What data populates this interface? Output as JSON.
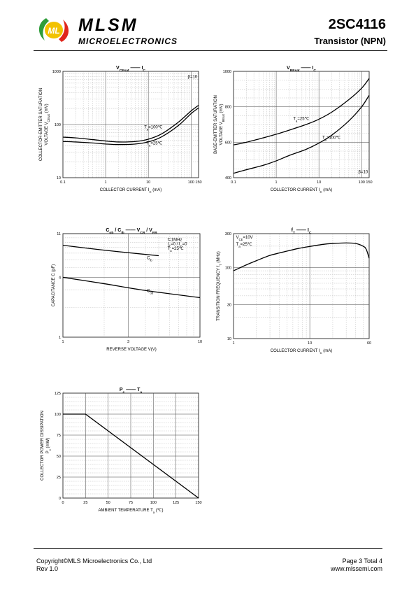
{
  "header": {
    "brand": "MLSM",
    "brand_sub": "MICROELECTRONICS",
    "part_number": "2SC4116",
    "part_type": "Transistor  (NPN)",
    "logo_text": "ML",
    "logo_colors": [
      "#2e9d3a",
      "#e0261c",
      "#f2c200"
    ]
  },
  "footer": {
    "copyright": "Copyright©MLS Microelectronics Co., Ltd",
    "rev": "Rev 1.0",
    "page": "Page 3 Total 4",
    "website": "www.mlssemi.com"
  },
  "chart_data": [
    {
      "type": "line",
      "title": [
        "V",
        "CEsat",
        "—",
        "I",
        "C"
      ],
      "ylabel": [
        "COLLECTOR-EMITTER SATURATION",
        "VOLTAGE   V",
        "CEsat",
        "(mV)"
      ],
      "xlabel": [
        "COLLECTOR CURRENT   I",
        "C",
        "(mA)"
      ],
      "xscale": "log",
      "yscale": "log",
      "xlim": [
        0.1,
        150
      ],
      "ylim": [
        10,
        1000
      ],
      "x_ticks": [
        [
          "0.1",
          0.1
        ],
        [
          "1",
          1
        ],
        [
          "10",
          10
        ],
        [
          "100",
          100
        ],
        [
          "150",
          150
        ]
      ],
      "y_ticks": [
        [
          "10",
          10
        ],
        [
          "100",
          100
        ],
        [
          "1000",
          1000
        ]
      ],
      "annotations": [
        {
          "text": "β=10",
          "x": 140,
          "y": 750,
          "anchor": "end"
        },
        {
          "text": "T",
          "sub": "a",
          "rest": "=100℃",
          "x": 8,
          "y": 85,
          "anchor": "start"
        },
        {
          "text": "T",
          "sub": "a",
          "rest": "=25℃",
          "x": 9,
          "y": 42,
          "anchor": "start"
        }
      ],
      "series": [
        {
          "x": [
            0.1,
            0.2,
            0.5,
            1,
            2,
            5,
            10,
            20,
            50,
            100,
            150
          ],
          "y": [
            58,
            56,
            52,
            49,
            47,
            48,
            53,
            66,
            110,
            180,
            230
          ]
        },
        {
          "x": [
            0.1,
            0.2,
            0.5,
            1,
            2,
            5,
            10,
            20,
            50,
            100,
            150
          ],
          "y": [
            48,
            47,
            45,
            43,
            42,
            43,
            47,
            58,
            95,
            160,
            205
          ]
        }
      ]
    },
    {
      "type": "line",
      "title": [
        "V",
        "BEsat",
        "—",
        "I",
        "C"
      ],
      "ylabel": [
        "BASE-EMITTER SATURATION",
        "VOLTAGE   V",
        "BEsat",
        "(mV)"
      ],
      "xlabel": [
        "COLLECTOR CURRENT   I",
        "C",
        "(mA)"
      ],
      "xscale": "log",
      "yscale": "linear",
      "xlim": [
        0.1,
        150
      ],
      "ylim": [
        400,
        1000
      ],
      "x_ticks": [
        [
          "0.1",
          0.1
        ],
        [
          "1",
          1
        ],
        [
          "10",
          10
        ],
        [
          "100",
          100
        ],
        [
          "150",
          150
        ]
      ],
      "y_ticks": [
        [
          "400",
          400
        ],
        [
          "600",
          600
        ],
        [
          "800",
          800
        ],
        [
          "1000",
          1000
        ]
      ],
      "annotations": [
        {
          "text": "T",
          "sub": "a",
          "rest": "=25℃",
          "x": 2.5,
          "y": 725,
          "anchor": "start"
        },
        {
          "text": "T",
          "sub": "a",
          "rest": "=100℃",
          "x": 12,
          "y": 620,
          "anchor": "start"
        },
        {
          "text": "β=10",
          "x": 140,
          "y": 425,
          "anchor": "end"
        }
      ],
      "series": [
        {
          "x": [
            0.1,
            0.2,
            0.5,
            1,
            2,
            5,
            10,
            20,
            50,
            100,
            150
          ],
          "y": [
            585,
            600,
            625,
            645,
            668,
            700,
            730,
            770,
            840,
            905,
            960
          ]
        },
        {
          "x": [
            0.1,
            0.2,
            0.5,
            1,
            2,
            5,
            10,
            20,
            50,
            100,
            150
          ],
          "y": [
            425,
            445,
            470,
            495,
            525,
            560,
            595,
            640,
            720,
            800,
            865
          ]
        }
      ]
    },
    {
      "type": "line",
      "title": [
        "C",
        "ob",
        " / ",
        "C",
        "ib",
        "—",
        "V",
        "CB",
        " / ",
        "V",
        "EB"
      ],
      "ylabel": [
        "CAPACITANCE   C",
        "(pF)"
      ],
      "xlabel": [
        "REVERSE  VOLTAGE   V",
        "(V)"
      ],
      "xscale": "log",
      "yscale": "log",
      "xlim": [
        1,
        10
      ],
      "ylim": [
        1,
        11
      ],
      "x_ticks": [
        [
          "1",
          1
        ],
        [
          "3",
          3
        ],
        [
          "10",
          10
        ]
      ],
      "y_ticks": [
        [
          "1",
          1
        ],
        [
          "4",
          4
        ],
        [
          "11",
          11
        ]
      ],
      "annotations": [
        {
          "text": "f=1MHz",
          "x": 5.8,
          "y": 9.3,
          "anchor": "start"
        },
        {
          "text": "I",
          "sub": "E",
          "rest": "=0 / I",
          "sub2": "C",
          "rest2": "=0",
          "x": 5.8,
          "y": 8.4,
          "anchor": "start"
        },
        {
          "text": "T",
          "sub": "a",
          "rest": "=25℃",
          "x": 5.8,
          "y": 7.6,
          "anchor": "start"
        },
        {
          "text": "C",
          "sub": "ib",
          "x": 4.1,
          "y": 6.1,
          "anchor": "start"
        },
        {
          "text": "C",
          "sub": "ob",
          "x": 4.1,
          "y": 2.85,
          "anchor": "start"
        }
      ],
      "series": [
        {
          "x": [
            1,
            2,
            4,
            5
          ],
          "y": [
            8.4,
            7.5,
            6.8,
            6.6
          ]
        },
        {
          "x": [
            1,
            2,
            4,
            10
          ],
          "y": [
            4.0,
            3.45,
            2.95,
            2.5
          ]
        }
      ]
    },
    {
      "type": "line",
      "title": [
        "f",
        "T",
        "—",
        "I",
        "C"
      ],
      "ylabel": [
        "TRANSITION FREQUENCY   f",
        "T",
        "(MHz)"
      ],
      "xlabel": [
        "COLLECTOR CURRENT   I",
        "C",
        "(mA)"
      ],
      "xscale": "log",
      "yscale": "log",
      "xlim": [
        1,
        60
      ],
      "ylim": [
        10,
        300
      ],
      "x_ticks": [
        [
          "1",
          1
        ],
        [
          "10",
          10
        ],
        [
          "60",
          60
        ]
      ],
      "y_ticks": [
        [
          "10",
          10
        ],
        [
          "30",
          30
        ],
        [
          "100",
          100
        ],
        [
          "300",
          300
        ]
      ],
      "annotations": [
        {
          "text": "V",
          "sub": "CE",
          "rest": "=10V",
          "x": 1.08,
          "y": 255,
          "anchor": "start"
        },
        {
          "text": "T",
          "sub": "a",
          "rest": "=25℃",
          "x": 1.08,
          "y": 205,
          "anchor": "start"
        }
      ],
      "series": [
        {
          "x": [
            1,
            1.5,
            2,
            3,
            5,
            7,
            10,
            15,
            20,
            30,
            40,
            50,
            55,
            60
          ],
          "y": [
            90,
            110,
            125,
            148,
            170,
            185,
            198,
            212,
            218,
            222,
            218,
            200,
            180,
            135
          ]
        }
      ]
    },
    {
      "type": "line",
      "title": [
        "P",
        "c",
        "—",
        "T",
        "a"
      ],
      "ylabel": [
        "COLLECTOR POWER DISSIPATION",
        "P",
        "c",
        "(mW)"
      ],
      "xlabel": [
        "AMBIENT TEMPERATURE   T",
        "a",
        "(℃)"
      ],
      "xscale": "linear",
      "yscale": "linear",
      "xlim": [
        0,
        150
      ],
      "ylim": [
        0,
        125
      ],
      "x_ticks": [
        [
          "0",
          0
        ],
        [
          "25",
          25
        ],
        [
          "50",
          50
        ],
        [
          "75",
          75
        ],
        [
          "100",
          100
        ],
        [
          "125",
          125
        ],
        [
          "150",
          150
        ]
      ],
      "y_ticks": [
        [
          "0",
          0
        ],
        [
          "25",
          25
        ],
        [
          "50",
          50
        ],
        [
          "75",
          75
        ],
        [
          "100",
          100
        ],
        [
          "125",
          125
        ]
      ],
      "annotations": [],
      "series": [
        {
          "x": [
            0,
            25,
            150
          ],
          "y": [
            100,
            100,
            0
          ]
        }
      ]
    }
  ]
}
